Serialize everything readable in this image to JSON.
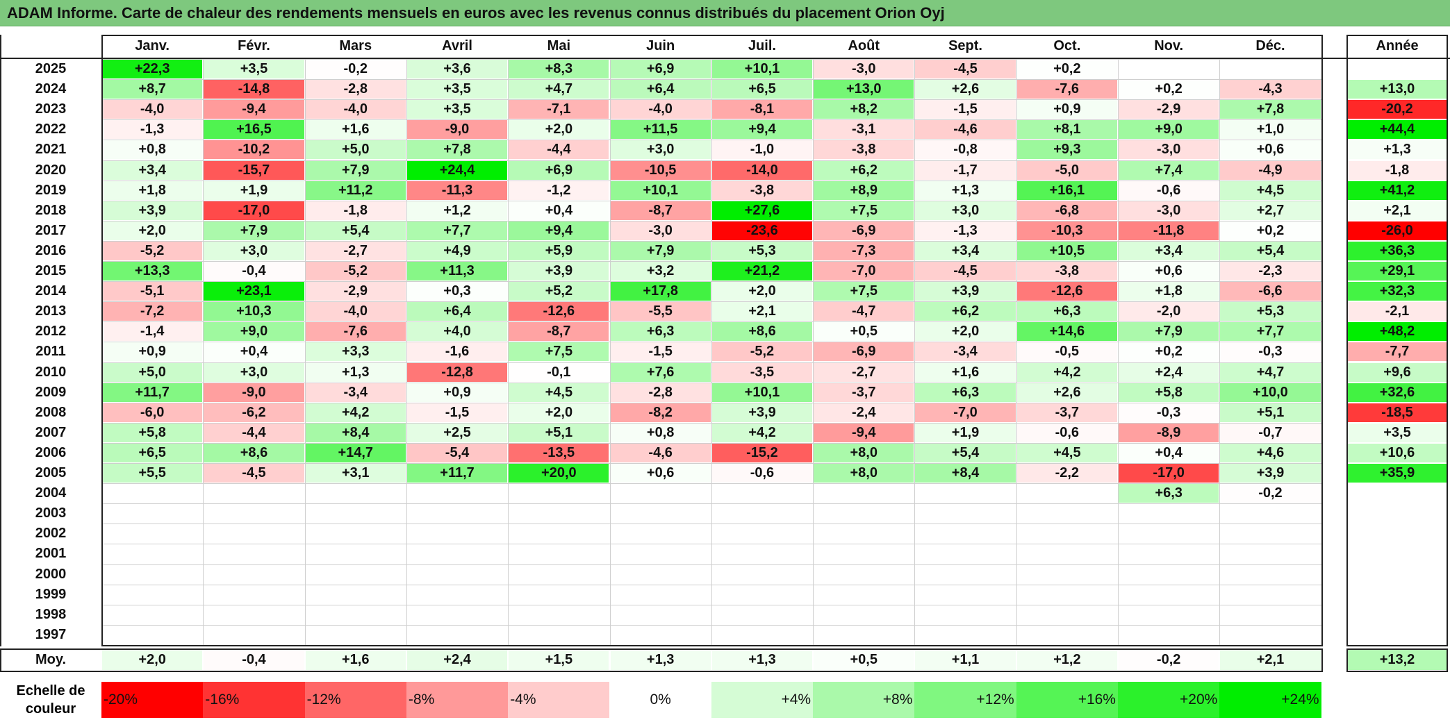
{
  "title": "ADAM Informe. Carte de chaleur des rendements mensuels en euros avec les revenus connus distribués du placement Orion Oyj",
  "chart_data": {
    "type": "heatmap",
    "title": "ADAM Informe. Carte de chaleur des rendements mensuels en euros avec les revenus connus distribués du placement Orion Oyj",
    "months": [
      "Janv.",
      "Févr.",
      "Mars",
      "Avril",
      "Mai",
      "Juin",
      "Juil.",
      "Août",
      "Sept.",
      "Oct.",
      "Nov.",
      "Déc."
    ],
    "year_header": "Année",
    "rows": [
      {
        "year": "2025",
        "values": [
          "+22,3",
          "+3,5",
          "-0,2",
          "+3,6",
          "+8,3",
          "+6,9",
          "+10,1",
          "-3,0",
          "-4,5",
          "+0,2",
          "",
          ""
        ],
        "annual": ""
      },
      {
        "year": "2024",
        "values": [
          "+8,7",
          "-14,8",
          "-2,8",
          "+3,5",
          "+4,7",
          "+6,4",
          "+6,5",
          "+13,0",
          "+2,6",
          "-7,6",
          "+0,2",
          "-4,3"
        ],
        "annual": "+13,0"
      },
      {
        "year": "2023",
        "values": [
          "-4,0",
          "-9,4",
          "-4,0",
          "+3,5",
          "-7,1",
          "-4,0",
          "-8,1",
          "+8,2",
          "-1,5",
          "+0,9",
          "-2,9",
          "+7,8"
        ],
        "annual": "-20,2"
      },
      {
        "year": "2022",
        "values": [
          "-1,3",
          "+16,5",
          "+1,6",
          "-9,0",
          "+2,0",
          "+11,5",
          "+9,4",
          "-3,1",
          "-4,6",
          "+8,1",
          "+9,0",
          "+1,0"
        ],
        "annual": "+44,4"
      },
      {
        "year": "2021",
        "values": [
          "+0,8",
          "-10,2",
          "+5,0",
          "+7,8",
          "-4,4",
          "+3,0",
          "-1,0",
          "-3,8",
          "-0,8",
          "+9,3",
          "-3,0",
          "+0,6"
        ],
        "annual": "+1,3"
      },
      {
        "year": "2020",
        "values": [
          "+3,4",
          "-15,7",
          "+7,9",
          "+24,4",
          "+6,9",
          "-10,5",
          "-14,0",
          "+6,2",
          "-1,7",
          "-5,0",
          "+7,4",
          "-4,9"
        ],
        "annual": "-1,8"
      },
      {
        "year": "2019",
        "values": [
          "+1,8",
          "+1,9",
          "+11,2",
          "-11,3",
          "-1,2",
          "+10,1",
          "-3,8",
          "+8,9",
          "+1,3",
          "+16,1",
          "-0,6",
          "+4,5"
        ],
        "annual": "+41,2"
      },
      {
        "year": "2018",
        "values": [
          "+3,9",
          "-17,0",
          "-1,8",
          "+1,2",
          "+0,4",
          "-8,7",
          "+27,6",
          "+7,5",
          "+3,0",
          "-6,8",
          "-3,0",
          "+2,7"
        ],
        "annual": "+2,1"
      },
      {
        "year": "2017",
        "values": [
          "+2,0",
          "+7,9",
          "+5,4",
          "+7,7",
          "+9,4",
          "-3,0",
          "-23,6",
          "-6,9",
          "-1,3",
          "-10,3",
          "-11,8",
          "+0,2"
        ],
        "annual": "-26,0"
      },
      {
        "year": "2016",
        "values": [
          "-5,2",
          "+3,0",
          "-2,7",
          "+4,9",
          "+5,9",
          "+7,9",
          "+5,3",
          "-7,3",
          "+3,4",
          "+10,5",
          "+3,4",
          "+5,4"
        ],
        "annual": "+36,3"
      },
      {
        "year": "2015",
        "values": [
          "+13,3",
          "-0,4",
          "-5,2",
          "+11,3",
          "+3,9",
          "+3,2",
          "+21,2",
          "-7,0",
          "-4,5",
          "-3,8",
          "+0,6",
          "-2,3"
        ],
        "annual": "+29,1"
      },
      {
        "year": "2014",
        "values": [
          "-5,1",
          "+23,1",
          "-2,9",
          "+0,3",
          "+5,2",
          "+17,8",
          "+2,0",
          "+7,5",
          "+3,9",
          "-12,6",
          "+1,8",
          "-6,6"
        ],
        "annual": "+32,3"
      },
      {
        "year": "2013",
        "values": [
          "-7,2",
          "+10,3",
          "-4,0",
          "+6,4",
          "-12,6",
          "-5,5",
          "+2,1",
          "-4,7",
          "+6,2",
          "+6,3",
          "-2,0",
          "+5,3"
        ],
        "annual": "-2,1"
      },
      {
        "year": "2012",
        "values": [
          "-1,4",
          "+9,0",
          "-7,6",
          "+4,0",
          "-8,7",
          "+6,3",
          "+8,6",
          "+0,5",
          "+2,0",
          "+14,6",
          "+7,9",
          "+7,7"
        ],
        "annual": "+48,2"
      },
      {
        "year": "2011",
        "values": [
          "+0,9",
          "+0,4",
          "+3,3",
          "-1,6",
          "+7,5",
          "-1,5",
          "-5,2",
          "-6,9",
          "-3,4",
          "-0,5",
          "+0,2",
          "-0,3"
        ],
        "annual": "-7,7"
      },
      {
        "year": "2010",
        "values": [
          "+5,0",
          "+3,0",
          "+1,3",
          "-12,8",
          "-0,1",
          "+7,6",
          "-3,5",
          "-2,7",
          "+1,6",
          "+4,2",
          "+2,4",
          "+4,7"
        ],
        "annual": "+9,6"
      },
      {
        "year": "2009",
        "values": [
          "+11,7",
          "-9,0",
          "-3,4",
          "+0,9",
          "+4,5",
          "-2,8",
          "+10,1",
          "-3,7",
          "+6,3",
          "+2,6",
          "+5,8",
          "+10,0"
        ],
        "annual": "+32,6"
      },
      {
        "year": "2008",
        "values": [
          "-6,0",
          "-6,2",
          "+4,2",
          "-1,5",
          "+2,0",
          "-8,2",
          "+3,9",
          "-2,4",
          "-7,0",
          "-3,7",
          "-0,3",
          "+5,1"
        ],
        "annual": "-18,5"
      },
      {
        "year": "2007",
        "values": [
          "+5,8",
          "-4,4",
          "+8,4",
          "+2,5",
          "+5,1",
          "+0,8",
          "+4,2",
          "-9,4",
          "+1,9",
          "-0,6",
          "-8,9",
          "-0,7"
        ],
        "annual": "+3,5"
      },
      {
        "year": "2006",
        "values": [
          "+6,5",
          "+8,6",
          "+14,7",
          "-5,4",
          "-13,5",
          "-4,6",
          "-15,2",
          "+8,0",
          "+5,4",
          "+4,5",
          "+0,4",
          "+4,6"
        ],
        "annual": "+10,6"
      },
      {
        "year": "2005",
        "values": [
          "+5,5",
          "-4,5",
          "+3,1",
          "+11,7",
          "+20,0",
          "+0,6",
          "-0,6",
          "+8,0",
          "+8,4",
          "-2,2",
          "-17,0",
          "+3,9"
        ],
        "annual": "+35,9"
      },
      {
        "year": "2004",
        "values": [
          "",
          "",
          "",
          "",
          "",
          "",
          "",
          "",
          "",
          "",
          "+6,3",
          "-0,2"
        ],
        "annual": ""
      },
      {
        "year": "2003",
        "values": [
          "",
          "",
          "",
          "",
          "",
          "",
          "",
          "",
          "",
          "",
          "",
          ""
        ],
        "annual": ""
      },
      {
        "year": "2002",
        "values": [
          "",
          "",
          "",
          "",
          "",
          "",
          "",
          "",
          "",
          "",
          "",
          ""
        ],
        "annual": ""
      },
      {
        "year": "2001",
        "values": [
          "",
          "",
          "",
          "",
          "",
          "",
          "",
          "",
          "",
          "",
          "",
          ""
        ],
        "annual": ""
      },
      {
        "year": "2000",
        "values": [
          "",
          "",
          "",
          "",
          "",
          "",
          "",
          "",
          "",
          "",
          "",
          ""
        ],
        "annual": ""
      },
      {
        "year": "1999",
        "values": [
          "",
          "",
          "",
          "",
          "",
          "",
          "",
          "",
          "",
          "",
          "",
          ""
        ],
        "annual": ""
      },
      {
        "year": "1998",
        "values": [
          "",
          "",
          "",
          "",
          "",
          "",
          "",
          "",
          "",
          "",
          "",
          ""
        ],
        "annual": ""
      },
      {
        "year": "1997",
        "values": [
          "",
          "",
          "",
          "",
          "",
          "",
          "",
          "",
          "",
          "",
          "",
          ""
        ],
        "annual": ""
      }
    ],
    "average": {
      "label": "Moy.",
      "values": [
        "+2,0",
        "-0,4",
        "+1,6",
        "+2,4",
        "+1,5",
        "+1,3",
        "+1,3",
        "+0,5",
        "+1,1",
        "+1,2",
        "-0,2",
        "+2,1"
      ],
      "annual": "+13,2"
    },
    "color_scale": {
      "label_line1": "Echelle de",
      "label_line2": "couleur",
      "steps": [
        "-20%",
        "-16%",
        "-12%",
        "-8%",
        "-4%",
        "0%",
        "+4%",
        "+8%",
        "+12%",
        "+16%",
        "+20%",
        "+24%"
      ],
      "step_values": [
        -20,
        -16,
        -12,
        -8,
        -4,
        0,
        4,
        8,
        12,
        16,
        20,
        24
      ],
      "negative_color": "#ff0000",
      "neutral_color": "#ffffff",
      "positive_color": "#00ee00"
    }
  }
}
